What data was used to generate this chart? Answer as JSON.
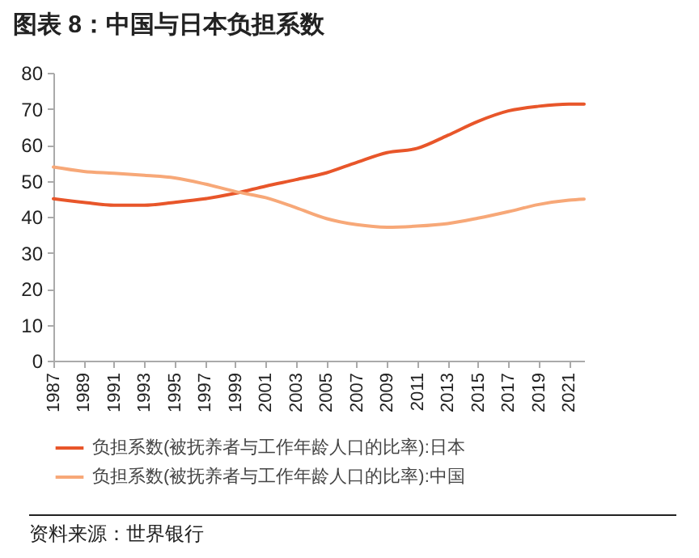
{
  "chart_data": {
    "type": "line",
    "title": "图表 8：中国与日本负担系数",
    "x": [
      1987,
      1989,
      1991,
      1993,
      1995,
      1997,
      1999,
      2001,
      2003,
      2005,
      2007,
      2009,
      2011,
      2013,
      2015,
      2017,
      2019,
      2021,
      2022
    ],
    "series": [
      {
        "name": "负担系数(被抚养者与工作年龄人口的比率):日本",
        "color": "#e8562a",
        "values": [
          45.0,
          44.0,
          43.2,
          43.2,
          44.0,
          45.0,
          46.5,
          48.5,
          50.3,
          52.2,
          55.1,
          57.8,
          59.0,
          62.6,
          66.5,
          69.4,
          70.7,
          71.3,
          71.3
        ]
      },
      {
        "name": "负担系数(被抚养者与工作年龄人口的比率):中国",
        "color": "#f7a878",
        "values": [
          53.8,
          52.6,
          52.1,
          51.5,
          50.8,
          49.1,
          47.0,
          45.3,
          42.5,
          39.5,
          37.8,
          37.1,
          37.4,
          38.1,
          39.6,
          41.4,
          43.4,
          44.6,
          44.9
        ]
      }
    ],
    "xlim": [
      1987,
      2022
    ],
    "xticks": [
      1987,
      1989,
      1991,
      1993,
      1995,
      1997,
      1999,
      2001,
      2003,
      2005,
      2007,
      2009,
      2011,
      2013,
      2015,
      2017,
      2019,
      2021
    ],
    "ylim": [
      0,
      80
    ],
    "yticks": [
      0,
      10,
      20,
      30,
      40,
      50,
      60,
      70,
      80
    ],
    "grid": false,
    "legend": "bottom",
    "marker": "none",
    "line_style": "solid",
    "annotations": [
      "资料来源：世界银行"
    ]
  }
}
